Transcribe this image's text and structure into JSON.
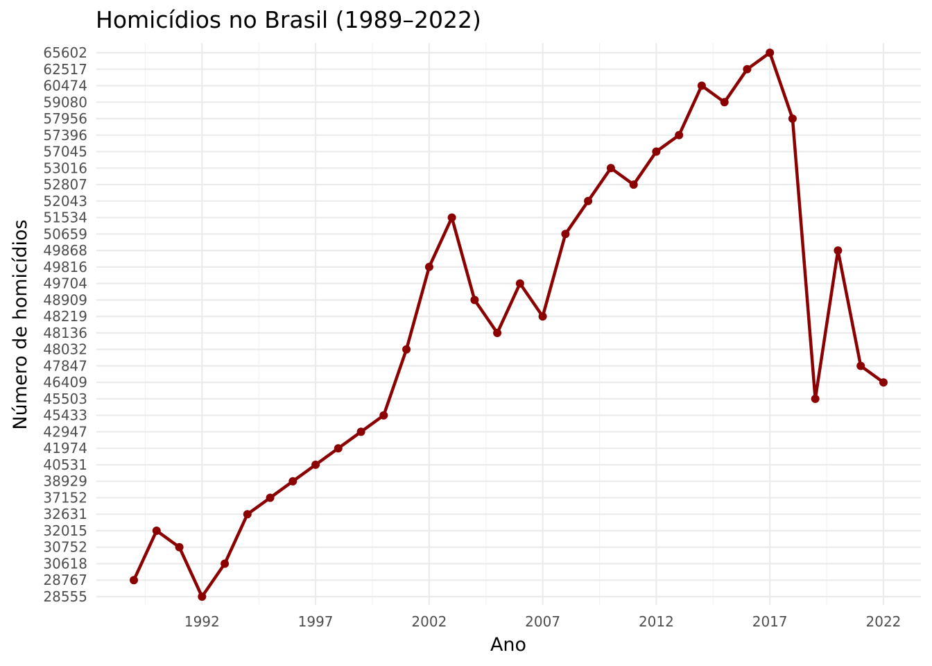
{
  "chart_data": {
    "type": "line",
    "title": "Homicídios no Brasil (1989–2022)",
    "xlabel": "Ano",
    "ylabel": "Número de homicídios",
    "x": [
      1989,
      1990,
      1991,
      1992,
      1993,
      1994,
      1995,
      1996,
      1997,
      1998,
      1999,
      2000,
      2001,
      2002,
      2003,
      2004,
      2005,
      2006,
      2007,
      2008,
      2009,
      2010,
      2011,
      2012,
      2013,
      2014,
      2015,
      2016,
      2017,
      2018,
      2019,
      2020,
      2021,
      2022
    ],
    "values": [
      28767,
      32015,
      30752,
      28555,
      30618,
      32631,
      37152,
      38929,
      40531,
      41974,
      42947,
      45433,
      48032,
      49816,
      51534,
      48909,
      48136,
      49704,
      48219,
      50659,
      52043,
      53016,
      52807,
      57045,
      57396,
      60474,
      59080,
      62517,
      65602,
      57956,
      45503,
      49868,
      47847,
      46409
    ],
    "y_scale": "categorical (each distinct value is an evenly spaced tick)",
    "y_ticks": [
      "28555",
      "28767",
      "30618",
      "30752",
      "32015",
      "32631",
      "37152",
      "38929",
      "40531",
      "41974",
      "42947",
      "45433",
      "45503",
      "46409",
      "47847",
      "48032",
      "48136",
      "48219",
      "48909",
      "49704",
      "49816",
      "49868",
      "50659",
      "51534",
      "52043",
      "52807",
      "53016",
      "57045",
      "57396",
      "57956",
      "59080",
      "60474",
      "62517",
      "65602"
    ],
    "x_ticks": [
      "1992",
      "1997",
      "2002",
      "2007",
      "2012",
      "2017",
      "2022"
    ],
    "xlim": [
      1987.35,
      2023.65
    ],
    "grid": true,
    "legend": "none",
    "color": "#8b0000"
  }
}
